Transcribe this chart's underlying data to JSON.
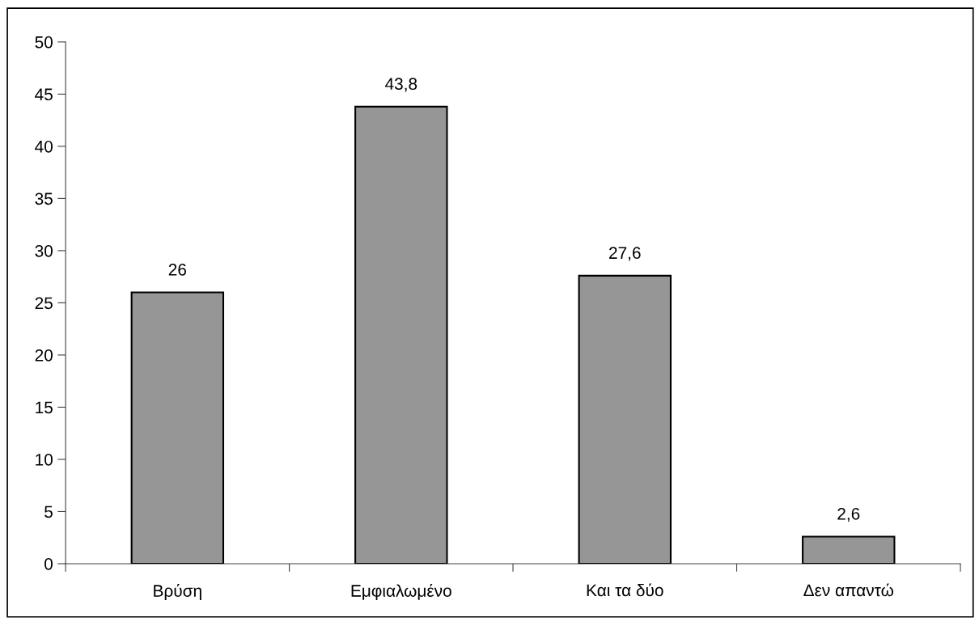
{
  "chart_data": {
    "type": "bar",
    "categories": [
      "Βρύση",
      "Εμφιαλωμένο",
      "Και τα δύο",
      "Δεν απαντώ"
    ],
    "values": [
      26,
      43.8,
      27.6,
      2.6
    ],
    "value_labels": [
      "26",
      "43,8",
      "27,6",
      "2,6"
    ],
    "color": "#969696",
    "ylim": [
      0,
      50
    ],
    "yticks": [
      0,
      5,
      10,
      15,
      20,
      25,
      30,
      35,
      40,
      45,
      50
    ]
  }
}
